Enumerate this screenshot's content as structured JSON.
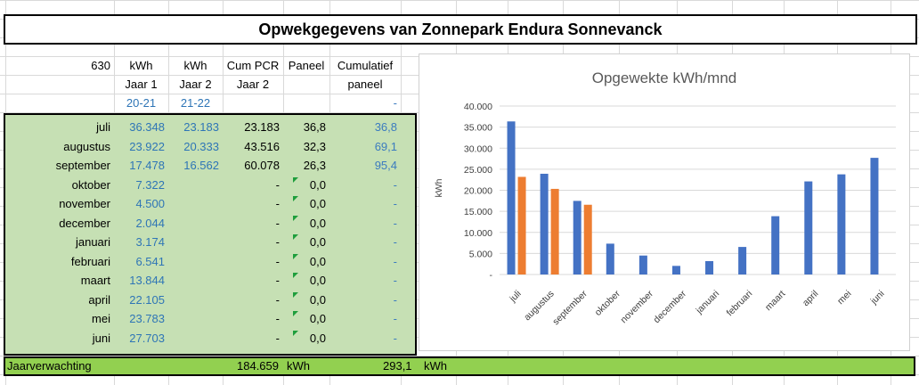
{
  "title": "Opwekgegevens van Zonnepark Endura Sonnevanck",
  "header": {
    "row1": [
      "630",
      "kWh",
      "kWh",
      "Cum PCR",
      "Paneel",
      "Cumulatief"
    ],
    "row2": [
      "",
      "Jaar 1",
      "Jaar 2",
      "Jaar 2",
      "",
      "paneel"
    ],
    "row3": [
      "",
      "20-21",
      "21-22",
      "",
      "",
      "-"
    ]
  },
  "rows": [
    {
      "month": "juli",
      "jaar1": "36.348",
      "jaar2": "23.183",
      "cum": "23.183",
      "paneel": "36,8",
      "cumpaneel": "36,8"
    },
    {
      "month": "augustus",
      "jaar1": "23.922",
      "jaar2": "20.333",
      "cum": "43.516",
      "paneel": "32,3",
      "cumpaneel": "69,1"
    },
    {
      "month": "september",
      "jaar1": "17.478",
      "jaar2": "16.562",
      "cum": "60.078",
      "paneel": "26,3",
      "cumpaneel": "95,4"
    },
    {
      "month": "oktober",
      "jaar1": "7.322",
      "jaar2": "",
      "cum": "-",
      "paneel": "0,0",
      "cumpaneel": "-"
    },
    {
      "month": "november",
      "jaar1": "4.500",
      "jaar2": "",
      "cum": "-",
      "paneel": "0,0",
      "cumpaneel": "-"
    },
    {
      "month": "december",
      "jaar1": "2.044",
      "jaar2": "",
      "cum": "-",
      "paneel": "0,0",
      "cumpaneel": "-"
    },
    {
      "month": "januari",
      "jaar1": "3.174",
      "jaar2": "",
      "cum": "-",
      "paneel": "0,0",
      "cumpaneel": "-"
    },
    {
      "month": "februari",
      "jaar1": "6.541",
      "jaar2": "",
      "cum": "-",
      "paneel": "0,0",
      "cumpaneel": "-"
    },
    {
      "month": "maart",
      "jaar1": "13.844",
      "jaar2": "",
      "cum": "-",
      "paneel": "0,0",
      "cumpaneel": "-"
    },
    {
      "month": "april",
      "jaar1": "22.105",
      "jaar2": "",
      "cum": "-",
      "paneel": "0,0",
      "cumpaneel": "-"
    },
    {
      "month": "mei",
      "jaar1": "23.783",
      "jaar2": "",
      "cum": "-",
      "paneel": "0,0",
      "cumpaneel": "-"
    },
    {
      "month": "juni",
      "jaar1": "27.703",
      "jaar2": "",
      "cum": "-",
      "paneel": "0,0",
      "cumpaneel": "-"
    }
  ],
  "footer": {
    "label": "Jaarverwachting",
    "total_kwh": "184.659",
    "unit1": "kWh",
    "total_paneel": "293,1",
    "unit2": "kWh"
  },
  "colors": {
    "series1": "#4472c4",
    "series2": "#ed7d31",
    "green_fill": "#c6e0b4",
    "bar_green": "#92d050"
  },
  "chart_data": {
    "type": "bar",
    "title": "Opgewekte kWh/mnd",
    "ylabel": "kWh",
    "xlabel": "",
    "ylim": [
      0,
      40000
    ],
    "yticks": [
      "-",
      "5.000",
      "10.000",
      "15.000",
      "20.000",
      "25.000",
      "30.000",
      "35.000",
      "40.000"
    ],
    "categories": [
      "juli",
      "augustus",
      "september",
      "oktober",
      "november",
      "december",
      "januari",
      "februari",
      "maart",
      "april",
      "mei",
      "juni"
    ],
    "series": [
      {
        "values": [
          36348,
          23922,
          17478,
          7322,
          4500,
          2044,
          3174,
          6541,
          13844,
          22105,
          23783,
          27703
        ]
      },
      {
        "values": [
          23183,
          20333,
          16562,
          null,
          null,
          null,
          null,
          null,
          null,
          null,
          null,
          null
        ]
      }
    ],
    "grid": true
  }
}
